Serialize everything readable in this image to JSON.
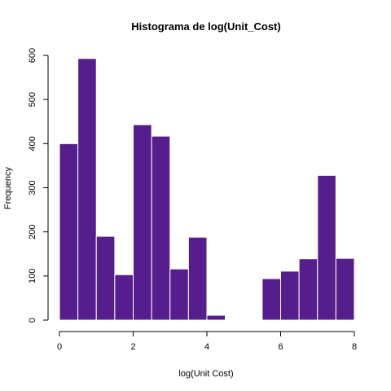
{
  "chart_data": {
    "type": "bar",
    "title": "Histograma de log(Unit_Cost)",
    "xlabel": "log(Unit Cost)",
    "ylabel": "Frequency",
    "bar_color": "#561e8c",
    "bar_border_color": "#ffffff",
    "bin_width": 0.5,
    "bins": [
      {
        "x0": 0.0,
        "x1": 0.5,
        "count": 400
      },
      {
        "x0": 0.5,
        "x1": 1.0,
        "count": 593
      },
      {
        "x0": 1.0,
        "x1": 1.5,
        "count": 190
      },
      {
        "x0": 1.5,
        "x1": 2.0,
        "count": 103
      },
      {
        "x0": 2.0,
        "x1": 2.5,
        "count": 443
      },
      {
        "x0": 2.5,
        "x1": 3.0,
        "count": 417
      },
      {
        "x0": 3.0,
        "x1": 3.5,
        "count": 116
      },
      {
        "x0": 3.5,
        "x1": 4.0,
        "count": 188
      },
      {
        "x0": 4.0,
        "x1": 4.5,
        "count": 11
      },
      {
        "x0": 4.5,
        "x1": 5.0,
        "count": 0
      },
      {
        "x0": 5.0,
        "x1": 5.5,
        "count": 0
      },
      {
        "x0": 5.5,
        "x1": 6.0,
        "count": 94
      },
      {
        "x0": 6.0,
        "x1": 6.5,
        "count": 111
      },
      {
        "x0": 6.5,
        "x1": 7.0,
        "count": 139
      },
      {
        "x0": 7.0,
        "x1": 7.5,
        "count": 328
      },
      {
        "x0": 7.5,
        "x1": 8.0,
        "count": 140
      }
    ],
    "xlim": [
      0,
      8
    ],
    "ylim": [
      0,
      600
    ],
    "x_ticks": [
      0,
      2,
      4,
      6,
      8
    ],
    "y_ticks": [
      0,
      100,
      200,
      300,
      400,
      500,
      600
    ],
    "grid": false,
    "legend": "none"
  }
}
